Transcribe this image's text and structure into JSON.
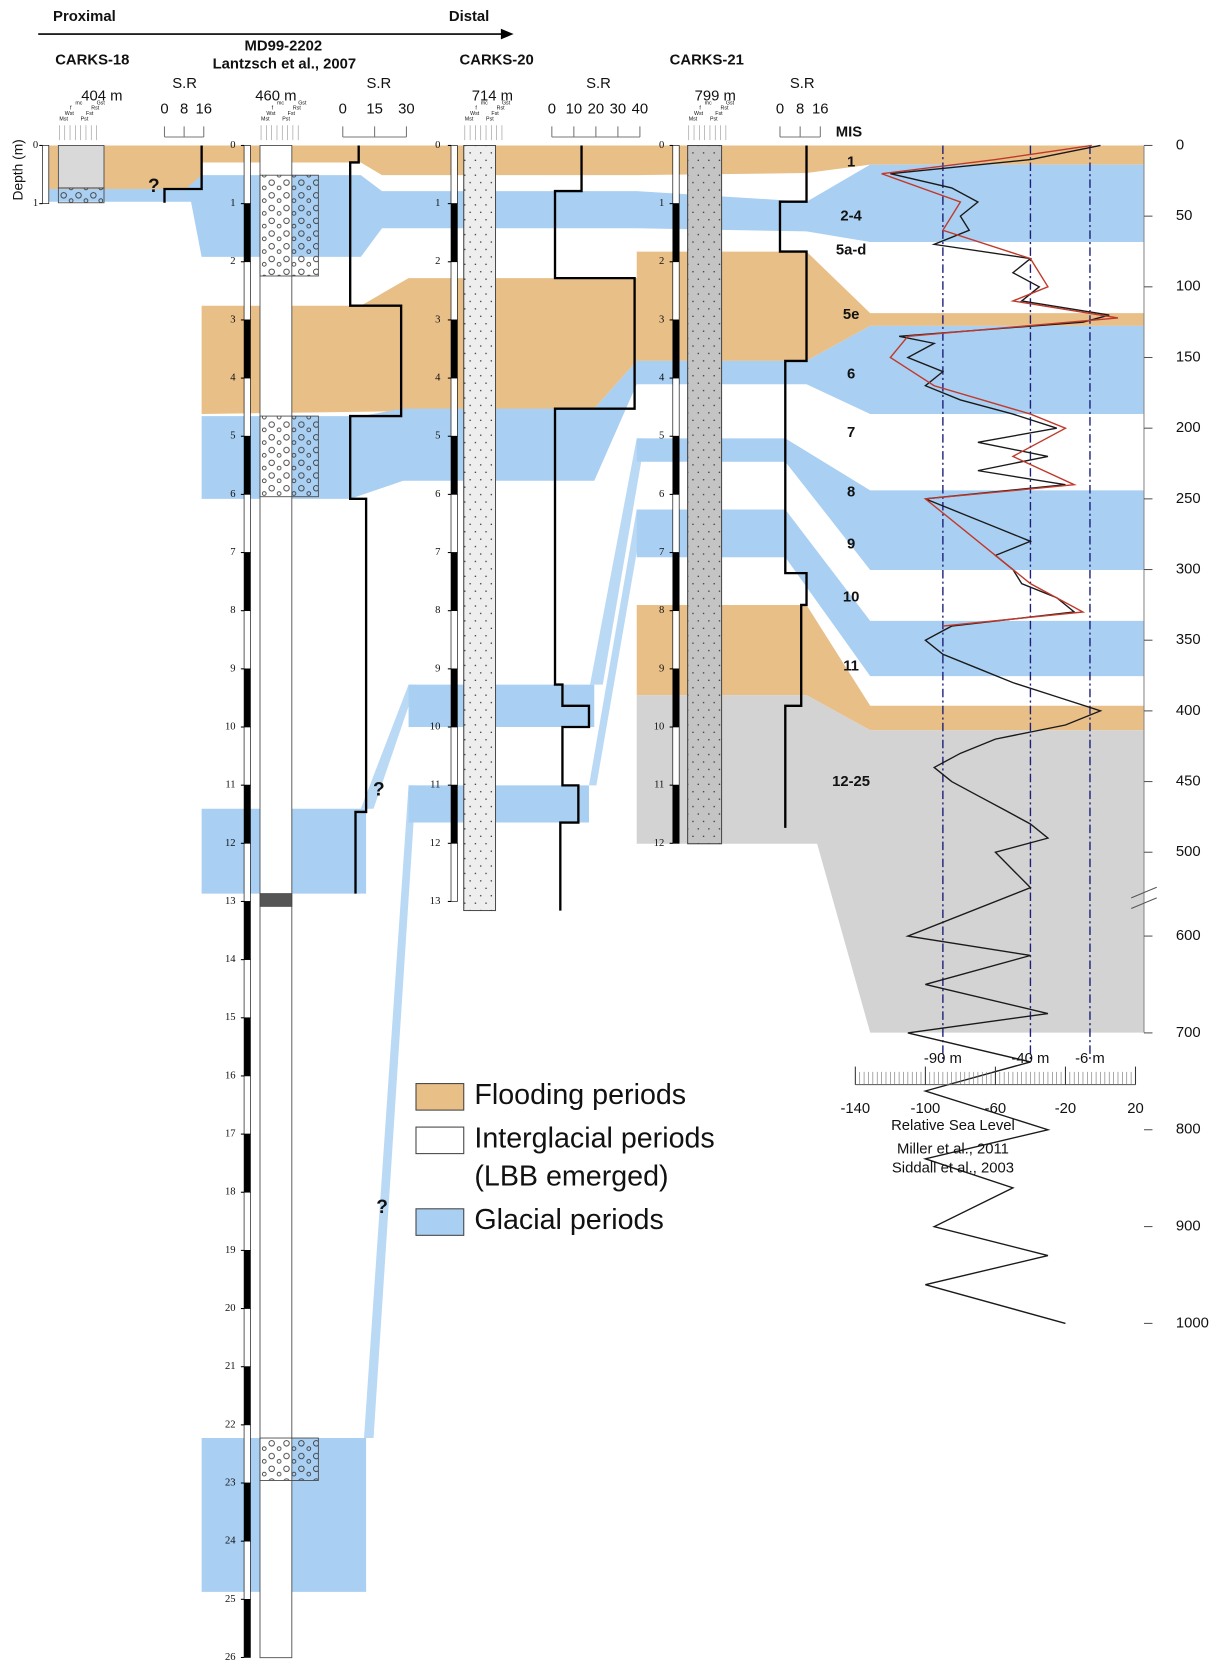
{
  "header": {
    "proximal": "Proximal",
    "distal": "Distal"
  },
  "depth_axis_label": "Depth (m)",
  "sr_label": "S.R",
  "grain_size_classes": [
    "Mst",
    "Wst",
    "f",
    "mc",
    "Pst",
    "Fst",
    "Rst",
    "Gst"
  ],
  "uncertain_mark": "?",
  "cores": [
    {
      "name": "CARKS-18",
      "water_depth": "404 m",
      "sr_ticks": [
        0,
        8,
        16
      ],
      "depth_ticks": [
        0,
        1
      ]
    },
    {
      "name": "MD99-2202",
      "reference": "Lantzsch et al., 2007",
      "water_depth": "460 m",
      "sr_ticks": [
        0,
        15,
        30
      ],
      "depth_ticks": [
        0,
        1,
        2,
        3,
        4,
        5,
        6,
        7,
        8,
        9,
        10,
        11,
        12,
        13,
        14,
        15,
        16,
        17,
        18,
        19,
        20,
        21,
        22,
        23,
        24,
        25,
        26
      ]
    },
    {
      "name": "CARKS-20",
      "water_depth": "714 m",
      "sr_ticks": [
        0,
        10,
        20,
        30,
        40
      ],
      "depth_ticks": [
        0,
        1,
        2,
        3,
        4,
        5,
        6,
        7,
        8,
        9,
        10,
        11,
        12,
        13
      ]
    },
    {
      "name": "CARKS-21",
      "water_depth": "799 m",
      "sr_ticks": [
        0,
        8,
        16
      ],
      "depth_ticks": [
        0,
        1,
        2,
        3,
        4,
        5,
        6,
        7,
        8,
        9,
        10,
        11,
        12
      ]
    }
  ],
  "mis": {
    "label": "MIS",
    "stages": [
      "1",
      "2-4",
      "5a-d",
      "5e",
      "6",
      "7",
      "8",
      "9",
      "10",
      "11",
      "12-25"
    ]
  },
  "age_ticks": [
    0,
    50,
    100,
    150,
    200,
    250,
    300,
    350,
    400,
    450,
    500,
    600,
    700,
    800,
    900,
    1000
  ],
  "sea_level": {
    "xlim": [
      -140,
      20
    ],
    "xticks": [
      -140,
      -100,
      -60,
      -20,
      20
    ],
    "xlabel": "Relative Sea Level",
    "thresholds": [
      {
        "value": -90,
        "label": "-90 m"
      },
      {
        "value": -40,
        "label": "-40 m"
      },
      {
        "value": -6,
        "label": "-6 m"
      }
    ],
    "series": [
      {
        "name": "Miller et al., 2011",
        "color": "#1a1a1a",
        "age": [
          0,
          10,
          20,
          30,
          40,
          50,
          60,
          70,
          80,
          90,
          100,
          110,
          120,
          125,
          135,
          140,
          150,
          160,
          170,
          180,
          190,
          200,
          210,
          220,
          230,
          240,
          250,
          260,
          270,
          280,
          290,
          300,
          310,
          320,
          330,
          340,
          350,
          360,
          370,
          380,
          390,
          400,
          410,
          420,
          430,
          440,
          450,
          460,
          470,
          480,
          490,
          500,
          550,
          600,
          620,
          650,
          680,
          700,
          730,
          760,
          800,
          830,
          860,
          900,
          930,
          960,
          1000
        ],
        "level": [
          0,
          -40,
          -120,
          -85,
          -70,
          -80,
          -75,
          -95,
          -40,
          -50,
          -35,
          -45,
          5,
          -10,
          -115,
          -95,
          -110,
          -90,
          -100,
          -80,
          -50,
          -25,
          -70,
          -30,
          -70,
          -20,
          -100,
          -80,
          -60,
          -40,
          -60,
          -50,
          -45,
          -25,
          -15,
          -85,
          -100,
          -90,
          -70,
          -50,
          -25,
          0,
          -20,
          -60,
          -80,
          -95,
          -85,
          -70,
          -55,
          -40,
          -30,
          -60,
          -40,
          -110,
          -40,
          -100,
          -30,
          -110,
          -40,
          -100,
          -30,
          -100,
          -50,
          -95,
          -30,
          -100,
          -20
        ]
      },
      {
        "name": "Siddall et al., 2003",
        "color": "#c0392b",
        "age": [
          0,
          10,
          20,
          40,
          60,
          80,
          100,
          110,
          122,
          135,
          150,
          170,
          190,
          200,
          220,
          240,
          250,
          270,
          290,
          310,
          330,
          340
        ],
        "level": [
          -5,
          -60,
          -125,
          -80,
          -90,
          -40,
          -30,
          -50,
          10,
          -110,
          -120,
          -95,
          -40,
          -20,
          -50,
          -15,
          -100,
          -80,
          -60,
          -40,
          -10,
          -90
        ]
      }
    ]
  },
  "legend": [
    {
      "label": "Flooding periods",
      "color": "#e9bf88"
    },
    {
      "label": [
        "Interglacial periods",
        "(LBB emerged)"
      ],
      "color": "#ffffff"
    },
    {
      "label": "Glacial periods",
      "color": "#a9cff2"
    }
  ]
}
